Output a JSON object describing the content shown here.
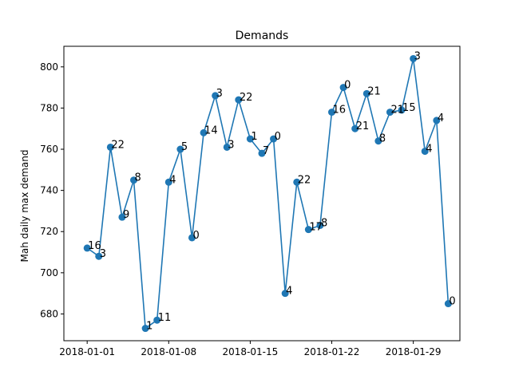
{
  "chart_data": {
    "type": "line",
    "title": "Demands",
    "xlabel": "",
    "ylabel": "Mah daily max demand",
    "xlim": [
      "2017-12-30",
      "2018-02-02"
    ],
    "ylim": [
      667,
      810
    ],
    "grid": false,
    "color": "#1f77b4",
    "x_ticks": [
      "2018-01-01",
      "2018-01-08",
      "2018-01-15",
      "2018-01-22",
      "2018-01-29"
    ],
    "y_ticks": [
      680,
      700,
      720,
      740,
      760,
      780,
      800
    ],
    "points": [
      {
        "x": "2018-01-01",
        "y": 712,
        "label": "16"
      },
      {
        "x": "2018-01-02",
        "y": 708,
        "label": "3"
      },
      {
        "x": "2018-01-03",
        "y": 761,
        "label": "22"
      },
      {
        "x": "2018-01-04",
        "y": 727,
        "label": "9"
      },
      {
        "x": "2018-01-05",
        "y": 745,
        "label": "8"
      },
      {
        "x": "2018-01-06",
        "y": 673,
        "label": "1"
      },
      {
        "x": "2018-01-07",
        "y": 677,
        "label": "11"
      },
      {
        "x": "2018-01-08",
        "y": 744,
        "label": "4"
      },
      {
        "x": "2018-01-09",
        "y": 760,
        "label": "5"
      },
      {
        "x": "2018-01-10",
        "y": 717,
        "label": "0"
      },
      {
        "x": "2018-01-11",
        "y": 768,
        "label": "14"
      },
      {
        "x": "2018-01-12",
        "y": 786,
        "label": "3"
      },
      {
        "x": "2018-01-13",
        "y": 761,
        "label": "3"
      },
      {
        "x": "2018-01-14",
        "y": 784,
        "label": "22"
      },
      {
        "x": "2018-01-15",
        "y": 765,
        "label": "1"
      },
      {
        "x": "2018-01-16",
        "y": 758,
        "label": "7"
      },
      {
        "x": "2018-01-17",
        "y": 765,
        "label": "0"
      },
      {
        "x": "2018-01-18",
        "y": 690,
        "label": "4"
      },
      {
        "x": "2018-01-19",
        "y": 744,
        "label": "22"
      },
      {
        "x": "2018-01-20",
        "y": 721,
        "label": "17"
      },
      {
        "x": "2018-01-21",
        "y": 723,
        "label": "8"
      },
      {
        "x": "2018-01-22",
        "y": 778,
        "label": "16"
      },
      {
        "x": "2018-01-23",
        "y": 790,
        "label": "0"
      },
      {
        "x": "2018-01-24",
        "y": 770,
        "label": "21"
      },
      {
        "x": "2018-01-25",
        "y": 787,
        "label": "21"
      },
      {
        "x": "2018-01-26",
        "y": 764,
        "label": "8"
      },
      {
        "x": "2018-01-27",
        "y": 778,
        "label": "21"
      },
      {
        "x": "2018-01-28",
        "y": 779,
        "label": "15"
      },
      {
        "x": "2018-01-29",
        "y": 804,
        "label": "3"
      },
      {
        "x": "2018-01-30",
        "y": 759,
        "label": "4"
      },
      {
        "x": "2018-01-31",
        "y": 774,
        "label": "4"
      },
      {
        "x": "2018-02-01",
        "y": 685,
        "label": "0"
      }
    ]
  }
}
